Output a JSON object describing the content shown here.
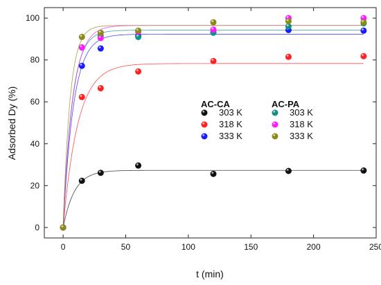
{
  "chart_data": {
    "type": "scatter",
    "xlabel": "t (min)",
    "ylabel": "Adsorbed Dy (%)",
    "xlim": [
      -15,
      250
    ],
    "ylim": [
      -5,
      105
    ],
    "xticks": [
      0,
      50,
      100,
      150,
      200,
      250
    ],
    "xtick_labels": [
      "0",
      "50",
      "100",
      "150",
      "200",
      "250"
    ],
    "yticks": [
      0,
      20,
      40,
      60,
      80,
      100
    ],
    "ytick_labels": [
      "0",
      "20",
      "40",
      "60",
      "80",
      "100"
    ],
    "legend": {
      "placement": "center-right",
      "groups": [
        {
          "title": "AC-CA",
          "entries": [
            "303 K",
            "318 K",
            "333 K"
          ]
        },
        {
          "title": "AC-PA",
          "entries": [
            "303 K",
            "318 K",
            "333 K"
          ]
        }
      ]
    },
    "series": [
      {
        "group": "AC-CA",
        "name": "303 K",
        "color": "#111111",
        "x": [
          0,
          15,
          30,
          60,
          120,
          180,
          240
        ],
        "y": [
          0,
          22.3,
          26.1,
          29.6,
          25.6,
          27.0,
          27.2
        ],
        "fit": {
          "qe": 27.3,
          "k": 0.11
        }
      },
      {
        "group": "AC-CA",
        "name": "318 K",
        "color": "#ff2020",
        "x": [
          0,
          15,
          30,
          60,
          120,
          180,
          240
        ],
        "y": [
          0,
          62.3,
          66.5,
          74.5,
          79.5,
          81.5,
          81.8
        ],
        "fit": {
          "qe": 78.3,
          "k": 0.085
        }
      },
      {
        "group": "AC-CA",
        "name": "333 K",
        "color": "#1a1aff",
        "x": [
          0,
          15,
          30,
          60,
          120,
          180,
          240
        ],
        "y": [
          0,
          77.2,
          85.5,
          91.5,
          93.3,
          94.3,
          94.0
        ],
        "fit": {
          "qe": 92.3,
          "k": 0.12
        }
      },
      {
        "group": "AC-PA",
        "name": "303 K",
        "color": "#0f8f86",
        "x": [
          0,
          15,
          30,
          60,
          120,
          180,
          240
        ],
        "y": [
          0,
          86.0,
          91.5,
          91.0,
          93.0,
          96.0,
          97.5
        ],
        "fit": {
          "qe": 94.2,
          "k": 0.14
        }
      },
      {
        "group": "AC-PA",
        "name": "318 K",
        "color": "#ff19ff",
        "x": [
          0,
          15,
          30,
          60,
          120,
          180,
          240
        ],
        "y": [
          0,
          86.0,
          90.5,
          93.5,
          94.5,
          100.0,
          100.0
        ],
        "fit": {
          "qe": 96.5,
          "k": 0.13
        }
      },
      {
        "group": "AC-PA",
        "name": "333 K",
        "color": "#8a8a16",
        "x": [
          0,
          15,
          30,
          60,
          120,
          180,
          240
        ],
        "y": [
          0,
          91.0,
          93.0,
          94.0,
          98.0,
          98.5,
          98.0
        ],
        "fit": {
          "qe": 96.5,
          "k": 0.18
        }
      }
    ]
  }
}
